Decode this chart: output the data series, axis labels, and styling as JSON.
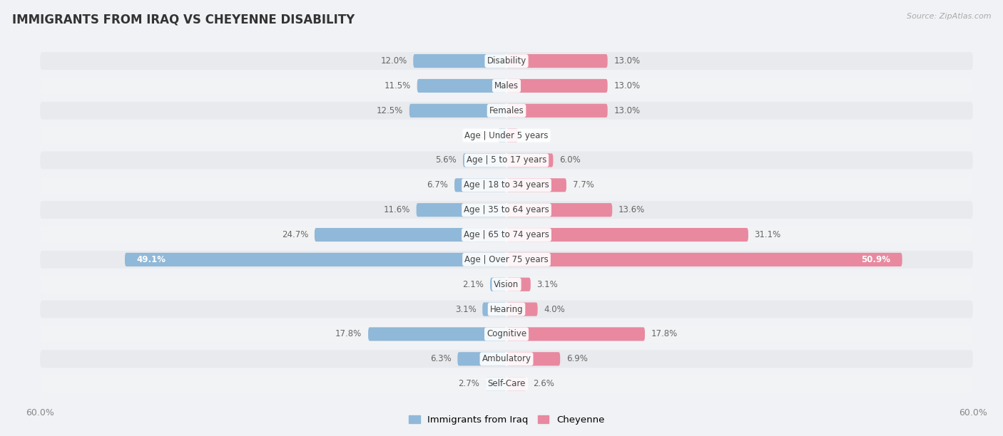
{
  "title": "IMMIGRANTS FROM IRAQ VS CHEYENNE DISABILITY",
  "source": "Source: ZipAtlas.com",
  "categories": [
    "Disability",
    "Males",
    "Females",
    "Age | Under 5 years",
    "Age | 5 to 17 years",
    "Age | 18 to 34 years",
    "Age | 35 to 64 years",
    "Age | 65 to 74 years",
    "Age | Over 75 years",
    "Vision",
    "Hearing",
    "Cognitive",
    "Ambulatory",
    "Self-Care"
  ],
  "iraq_values": [
    12.0,
    11.5,
    12.5,
    1.1,
    5.6,
    6.7,
    11.6,
    24.7,
    49.1,
    2.1,
    3.1,
    17.8,
    6.3,
    2.7
  ],
  "cheyenne_values": [
    13.0,
    13.0,
    13.0,
    1.5,
    6.0,
    7.7,
    13.6,
    31.1,
    50.9,
    3.1,
    4.0,
    17.8,
    6.9,
    2.6
  ],
  "iraq_color": "#90b8d8",
  "cheyenne_color": "#e889a0",
  "iraq_label": "Immigrants from Iraq",
  "cheyenne_label": "Cheyenne",
  "xlim": 60.0,
  "fig_bg": "#f0f2f5",
  "row_bg_even": "#e8eaed",
  "row_bg_odd": "#f2f3f5",
  "title_fontsize": 12,
  "label_fontsize": 8.5,
  "value_fontsize": 8.5
}
